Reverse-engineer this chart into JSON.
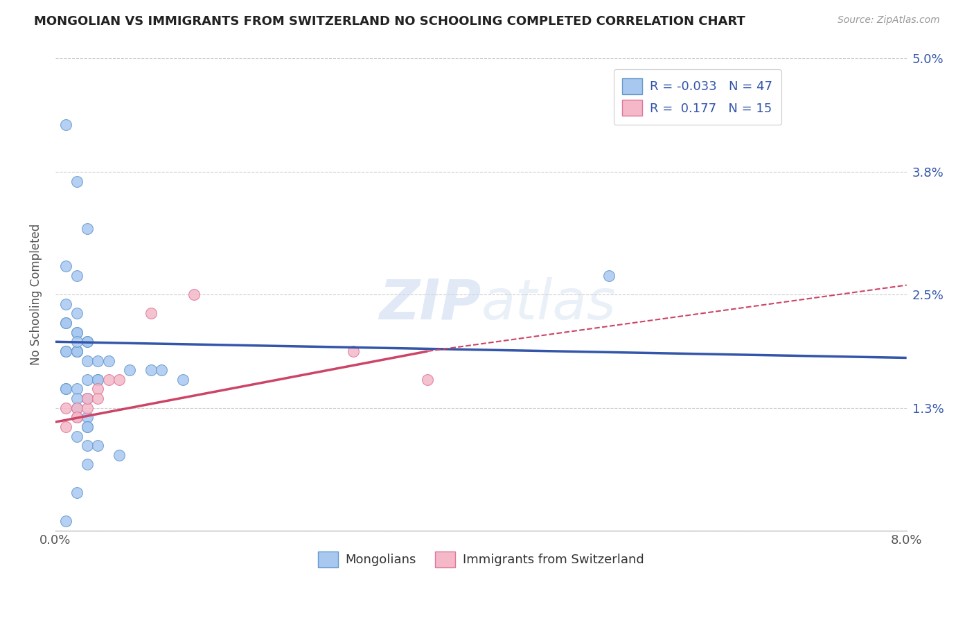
{
  "title": "MONGOLIAN VS IMMIGRANTS FROM SWITZERLAND NO SCHOOLING COMPLETED CORRELATION CHART",
  "source_text": "Source: ZipAtlas.com",
  "ylabel": "No Schooling Completed",
  "x_min": 0.0,
  "x_max": 0.08,
  "y_min": 0.0,
  "y_max": 0.05,
  "x_ticks": [
    0.0,
    0.01,
    0.02,
    0.03,
    0.04,
    0.05,
    0.06,
    0.07,
    0.08
  ],
  "x_tick_labels": [
    "0.0%",
    "",
    "",
    "",
    "",
    "",
    "",
    "",
    "8.0%"
  ],
  "y_ticks": [
    0.0,
    0.013,
    0.025,
    0.038,
    0.05
  ],
  "y_tick_labels": [
    "",
    "1.3%",
    "2.5%",
    "3.8%",
    "5.0%"
  ],
  "mongolian_color": "#a8c8f0",
  "mongolian_edge": "#6699cc",
  "swiss_color": "#f4b8c8",
  "swiss_edge": "#dd7799",
  "trendline_mongolian_color": "#3355aa",
  "trendline_swiss_color": "#cc4466",
  "watermark_text": "ZIPatlas",
  "mongolian_trendline_start_y": 0.02,
  "mongolian_trendline_end_y": 0.0183,
  "swiss_trendline_x0": 0.0,
  "swiss_trendline_y0": 0.0115,
  "swiss_trendline_x_solid_end": 0.035,
  "swiss_trendline_y_solid_end": 0.019,
  "swiss_trendline_x_dash_end": 0.08,
  "swiss_trendline_y_dash_end": 0.026,
  "mongolian_x": [
    0.001,
    0.002,
    0.003,
    0.001,
    0.002,
    0.001,
    0.002,
    0.001,
    0.001,
    0.002,
    0.002,
    0.003,
    0.003,
    0.002,
    0.002,
    0.001,
    0.001,
    0.002,
    0.002,
    0.003,
    0.004,
    0.005,
    0.007,
    0.009,
    0.01,
    0.012,
    0.003,
    0.004,
    0.004,
    0.002,
    0.001,
    0.001,
    0.002,
    0.003,
    0.002,
    0.003,
    0.003,
    0.003,
    0.002,
    0.003,
    0.004,
    0.006,
    0.052,
    0.002,
    0.001,
    0.003,
    0.002
  ],
  "mongolian_y": [
    0.043,
    0.037,
    0.032,
    0.028,
    0.027,
    0.024,
    0.023,
    0.022,
    0.022,
    0.021,
    0.021,
    0.02,
    0.02,
    0.019,
    0.019,
    0.019,
    0.019,
    0.019,
    0.019,
    0.018,
    0.018,
    0.018,
    0.017,
    0.017,
    0.017,
    0.016,
    0.016,
    0.016,
    0.016,
    0.015,
    0.015,
    0.015,
    0.014,
    0.014,
    0.013,
    0.012,
    0.011,
    0.011,
    0.01,
    0.009,
    0.009,
    0.008,
    0.027,
    0.004,
    0.001,
    0.007,
    0.02
  ],
  "swiss_x": [
    0.001,
    0.001,
    0.002,
    0.002,
    0.002,
    0.003,
    0.003,
    0.004,
    0.004,
    0.005,
    0.006,
    0.009,
    0.013,
    0.028,
    0.035
  ],
  "swiss_y": [
    0.011,
    0.013,
    0.012,
    0.013,
    0.012,
    0.013,
    0.014,
    0.015,
    0.014,
    0.016,
    0.016,
    0.023,
    0.025,
    0.019,
    0.016
  ]
}
